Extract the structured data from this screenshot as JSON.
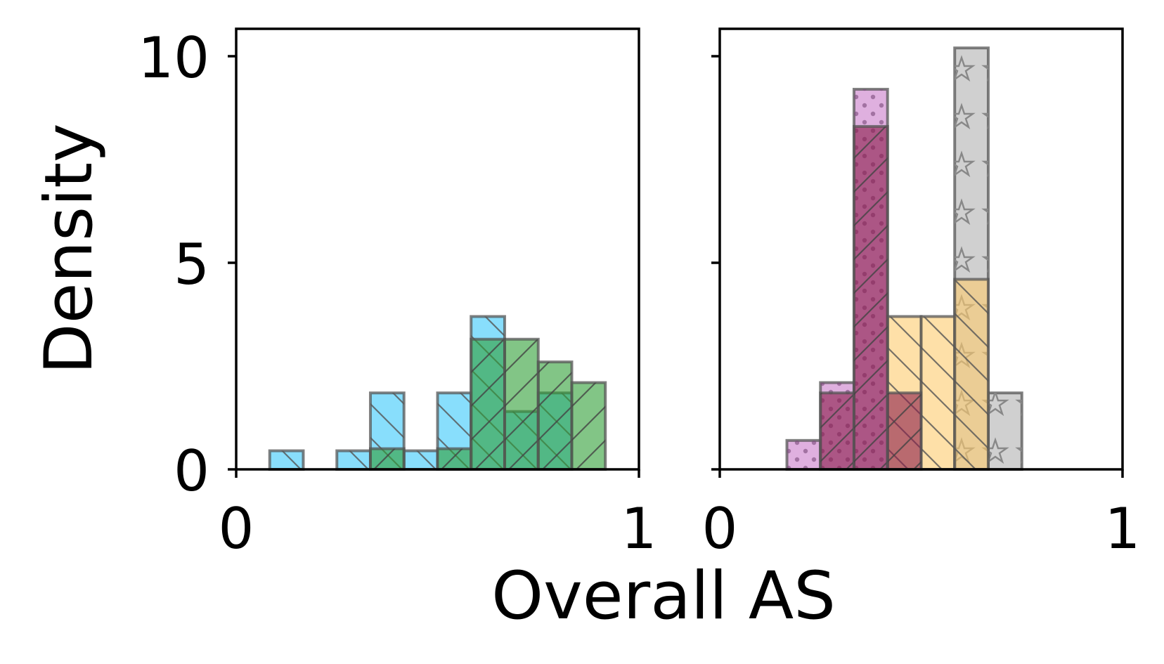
{
  "figure": {
    "xlabel": "Overall AS",
    "ylabel": "Density"
  },
  "chart_data": [
    {
      "type": "bar",
      "panel": "left",
      "xlim": [
        0,
        1
      ],
      "ylim": [
        0,
        10
      ],
      "xticks": [
        "0",
        "1"
      ],
      "yticks": [
        "0",
        "5",
        "10"
      ],
      "bin_width": 0.0833,
      "series": [
        {
          "color": "#38C8FA",
          "hatch": "backslash",
          "bins": [
            {
              "x0": 0.0833,
              "height": 0.45
            },
            {
              "x0": 0.25,
              "height": 0.45
            },
            {
              "x0": 0.3333,
              "height": 1.85
            },
            {
              "x0": 0.4167,
              "height": 0.45
            },
            {
              "x0": 0.5,
              "height": 1.85
            },
            {
              "x0": 0.5833,
              "height": 3.7
            },
            {
              "x0": 0.6667,
              "height": 1.4
            },
            {
              "x0": 0.75,
              "height": 1.85
            }
          ]
        },
        {
          "color": "#2E9F36",
          "hatch": "slash",
          "bins": [
            {
              "x0": 0.3333,
              "height": 0.5
            },
            {
              "x0": 0.5,
              "height": 0.5
            },
            {
              "x0": 0.5833,
              "height": 3.15
            },
            {
              "x0": 0.6667,
              "height": 3.15
            },
            {
              "x0": 0.75,
              "height": 2.6
            },
            {
              "x0": 0.8333,
              "height": 2.1
            }
          ]
        }
      ]
    },
    {
      "type": "bar",
      "panel": "right",
      "xlim": [
        0,
        1
      ],
      "ylim": [
        0,
        10
      ],
      "xticks": [
        "0",
        "1"
      ],
      "yticks": [
        "",
        "",
        ""
      ],
      "bin_width": 0.0833,
      "series": [
        {
          "color": "#B0B0B0",
          "hatch": "stars",
          "bins": [
            {
              "x0": 0.5833,
              "height": 10.2
            },
            {
              "x0": 0.6667,
              "height": 1.85
            }
          ]
        },
        {
          "color": "#C97BC9",
          "hatch": "dots",
          "bins": [
            {
              "x0": 0.1667,
              "height": 0.7
            },
            {
              "x0": 0.25,
              "height": 2.1
            },
            {
              "x0": 0.3333,
              "height": 9.2
            }
          ]
        },
        {
          "color": "#FDCB6E",
          "hatch": "backslash",
          "bins": [
            {
              "x0": 0.4167,
              "height": 3.7
            },
            {
              "x0": 0.5,
              "height": 3.7
            },
            {
              "x0": 0.5833,
              "height": 4.6
            }
          ]
        },
        {
          "color": "#8B1A4A",
          "hatch": "slash",
          "bins": [
            {
              "x0": 0.25,
              "height": 1.85
            },
            {
              "x0": 0.3333,
              "height": 8.3
            },
            {
              "x0": 0.4167,
              "height": 1.85
            }
          ]
        }
      ]
    }
  ]
}
